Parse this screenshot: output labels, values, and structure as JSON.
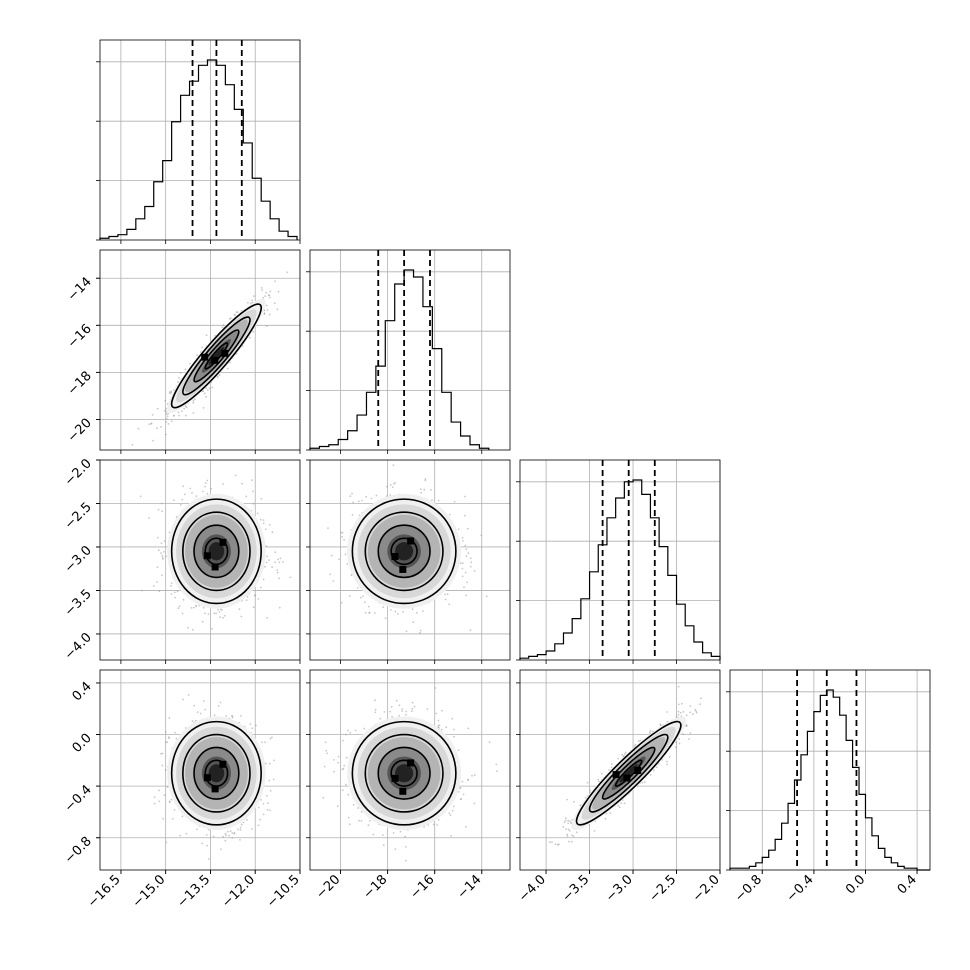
{
  "chart_data": {
    "type": "corner",
    "title": "",
    "n_params": 4,
    "params": [
      {
        "range": [
          -17.2,
          -10.5
        ],
        "ticks": [
          -16.5,
          -15.0,
          -13.5,
          -12.0,
          -10.5
        ],
        "tick_labels": [
          "−16.5",
          "−15.0",
          "−13.5",
          "−12.0",
          "−10.5"
        ],
        "quantiles": [
          -14.1,
          -13.3,
          -12.45
        ],
        "hist": {
          "edges": [
            -17.2,
            -16.9,
            -16.6,
            -16.3,
            -16.0,
            -15.7,
            -15.4,
            -15.1,
            -14.8,
            -14.5,
            -14.2,
            -13.9,
            -13.6,
            -13.3,
            -13.0,
            -12.7,
            -12.4,
            -12.1,
            -11.8,
            -11.5,
            -11.2,
            -10.9,
            -10.6
          ],
          "counts": [
            1,
            2,
            3,
            6,
            12,
            19,
            33,
            45,
            67,
            82,
            90,
            99,
            102,
            99,
            88,
            74,
            55,
            35,
            22,
            12,
            5,
            2
          ]
        }
      },
      {
        "range": [
          -21.3,
          -12.8
        ],
        "ticks": [
          -20,
          -18,
          -16,
          -14
        ],
        "tick_labels": [
          "−20",
          "−18",
          "−16",
          "−14"
        ],
        "quantiles": [
          -18.4,
          -17.3,
          -16.2
        ],
        "hist": {
          "edges": [
            -21.3,
            -20.9,
            -20.5,
            -20.1,
            -19.7,
            -19.3,
            -18.9,
            -18.5,
            -18.1,
            -17.7,
            -17.3,
            -16.9,
            -16.5,
            -16.1,
            -15.7,
            -15.3,
            -14.9,
            -14.5,
            -14.1,
            -13.7
          ],
          "counts": [
            1,
            2,
            3,
            6,
            11,
            20,
            33,
            48,
            74,
            95,
            103,
            99,
            82,
            58,
            33,
            16,
            8,
            3,
            1
          ]
        }
      },
      {
        "range": [
          -4.3,
          -2.0
        ],
        "ticks": [
          -4.0,
          -3.5,
          -3.0,
          -2.5,
          -2.0
        ],
        "tick_labels": [
          "−4.0",
          "−3.5",
          "−3.0",
          "−2.5",
          "−2.0"
        ],
        "quantiles": [
          -3.35,
          -3.05,
          -2.75
        ],
        "hist": {
          "edges": [
            -4.3,
            -4.2,
            -4.1,
            -4.0,
            -3.9,
            -3.8,
            -3.7,
            -3.6,
            -3.5,
            -3.4,
            -3.3,
            -3.2,
            -3.1,
            -3.0,
            -2.9,
            -2.8,
            -2.7,
            -2.6,
            -2.5,
            -2.4,
            -2.3,
            -2.2,
            -2.1,
            -2.0
          ],
          "counts": [
            1,
            2,
            3,
            5,
            9,
            15,
            23,
            34,
            49,
            64,
            79,
            90,
            99,
            100,
            92,
            79,
            63,
            47,
            31,
            19,
            10,
            4,
            2
          ]
        }
      },
      {
        "range": [
          -1.05,
          0.5
        ],
        "ticks": [
          -0.8,
          -0.4,
          0.0,
          0.4
        ],
        "tick_labels": [
          "−0.8",
          "−0.4",
          "0.0",
          "0.4"
        ],
        "quantiles": [
          -0.53,
          -0.3,
          -0.07
        ],
        "hist": {
          "edges": [
            -1.05,
            -0.95,
            -0.9,
            -0.85,
            -0.8,
            -0.75,
            -0.7,
            -0.65,
            -0.6,
            -0.55,
            -0.5,
            -0.45,
            -0.4,
            -0.35,
            -0.3,
            -0.25,
            -0.2,
            -0.15,
            -0.1,
            -0.05,
            0.0,
            0.05,
            0.1,
            0.15,
            0.2,
            0.25,
            0.3,
            0.35,
            0.4,
            0.45,
            0.5
          ],
          "counts": [
            1,
            1,
            2,
            4,
            7,
            11,
            17,
            26,
            37,
            50,
            64,
            77,
            88,
            97,
            100,
            96,
            86,
            72,
            57,
            42,
            29,
            19,
            12,
            7,
            4,
            2,
            1,
            1,
            0,
            0
          ]
        }
      }
    ],
    "pairs": [
      {
        "row": 1,
        "col": 0,
        "mean": [
          -13.3,
          -17.3
        ],
        "sigma": [
          0.75,
          1.1
        ],
        "rho": 0.93
      },
      {
        "row": 2,
        "col": 0,
        "mean": [
          -13.3,
          -3.05
        ],
        "sigma": [
          0.75,
          0.3
        ],
        "rho": 0.0
      },
      {
        "row": 2,
        "col": 1,
        "mean": [
          -17.3,
          -3.05
        ],
        "sigma": [
          1.1,
          0.3
        ],
        "rho": 0.0
      },
      {
        "row": 3,
        "col": 0,
        "mean": [
          -13.3,
          -0.3
        ],
        "sigma": [
          0.75,
          0.2
        ],
        "rho": 0.0
      },
      {
        "row": 3,
        "col": 1,
        "mean": [
          -17.3,
          -0.3
        ],
        "sigma": [
          1.1,
          0.2
        ],
        "rho": 0.0
      },
      {
        "row": 3,
        "col": 2,
        "mean": [
          -3.05,
          -0.3
        ],
        "sigma": [
          0.3,
          0.2
        ],
        "rho": 0.93
      }
    ],
    "contour_levels_sigma": [
      0.5,
      1.0,
      1.5,
      2.0
    ],
    "grid": true,
    "colors": {
      "line": "#000000",
      "grid": "#b0b0b0",
      "points": "#9a9a9a",
      "density_max": "#000000"
    }
  }
}
